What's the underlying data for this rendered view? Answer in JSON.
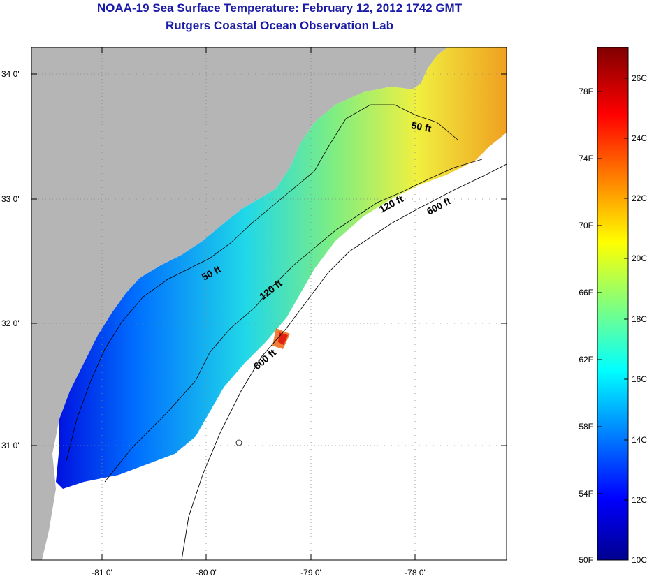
{
  "title": "NOAA-19 Sea Surface Temperature:  February 12, 2012 1742 GMT",
  "subtitle": "Rutgers Coastal Ocean Observation Lab",
  "map": {
    "lat_labels": [
      "34 0'",
      "33 0'",
      "32 0'",
      "31 0'"
    ],
    "lon_labels": [
      "-81 0'",
      "-80 0'",
      "-79 0'",
      "-78 0'"
    ],
    "contour_labels": [
      "50 ft",
      "50 ft",
      "120 ft",
      "120 ft",
      "600 ft",
      "600 ft"
    ],
    "colors": {
      "land": "#b5b5b5",
      "ocean_nodata": "#ffffff",
      "contour": "#000000"
    }
  },
  "colorbar": {
    "fahrenheit_labels": [
      "78F",
      "74F",
      "70F",
      "66F",
      "62F",
      "58F",
      "54F",
      "50F"
    ],
    "celsius_labels": [
      "26C",
      "24C",
      "22C",
      "20C",
      "18C",
      "16C",
      "14C",
      "12C",
      "10C"
    ],
    "colormap": "jet"
  }
}
